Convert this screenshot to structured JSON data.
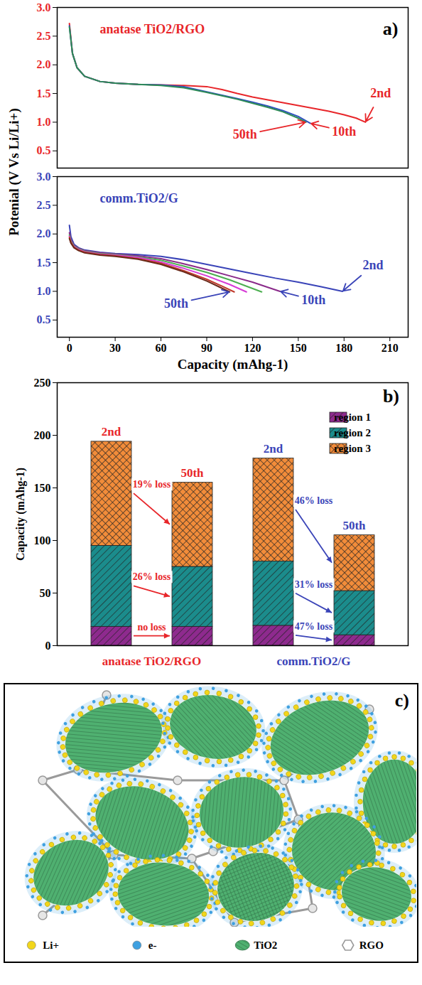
{
  "chart_data": [
    {
      "type": "line",
      "panel_label": "a)",
      "xlabel": "Capacity (mAhg-1)",
      "ylabel": "Potenial (V Vs Li/Li+)",
      "xlim": [
        -8,
        222
      ],
      "xticks": [
        0,
        30,
        60,
        90,
        120,
        150,
        180,
        210
      ],
      "ylim": [
        0.2,
        3.0
      ],
      "yticks": [
        0.5,
        {
          "value": 1,
          "label": "1.0"
        },
        1.5,
        {
          "value": 2,
          "label": "2.0"
        },
        2.5,
        {
          "value": 3,
          "label": "3.0"
        }
      ],
      "panels": [
        {
          "title": "anatase TiO2/RGO",
          "color": "#e8262a",
          "tick_labels": "y",
          "series": [
            {
              "name": "2nd",
              "color": "#e8262a",
              "x": [
                0,
                2,
                5,
                10,
                20,
                30,
                45,
                60,
                75,
                90,
                100,
                110,
                120,
                130,
                140,
                150,
                160,
                170,
                180,
                188,
                194
              ],
              "values": [
                2.72,
                2.2,
                1.95,
                1.8,
                1.71,
                1.68,
                1.66,
                1.65,
                1.64,
                1.62,
                1.57,
                1.5,
                1.44,
                1.39,
                1.34,
                1.29,
                1.24,
                1.19,
                1.13,
                1.07,
                1.0
              ]
            },
            {
              "name": "10th",
              "color": "#3050c0",
              "x": [
                0,
                2,
                5,
                10,
                20,
                30,
                45,
                60,
                75,
                90,
                100,
                110,
                120,
                130,
                140,
                150,
                158
              ],
              "values": [
                2.68,
                2.2,
                1.95,
                1.8,
                1.71,
                1.68,
                1.66,
                1.65,
                1.62,
                1.53,
                1.47,
                1.41,
                1.35,
                1.28,
                1.2,
                1.1,
                0.98
              ]
            },
            {
              "name": "50th",
              "color": "#2e8b57",
              "x": [
                0,
                2,
                5,
                10,
                20,
                30,
                45,
                60,
                75,
                90,
                100,
                110,
                120,
                130,
                140,
                150,
                155
              ],
              "values": [
                2.66,
                2.2,
                1.95,
                1.8,
                1.71,
                1.68,
                1.66,
                1.64,
                1.6,
                1.52,
                1.46,
                1.4,
                1.33,
                1.26,
                1.18,
                1.07,
                1.0
              ]
            }
          ]
        },
        {
          "title": "comm.TiO2/G",
          "color": "#3a44b8",
          "series": [
            {
              "name": "2nd",
              "color": "#3a44b8",
              "x": [
                0,
                1,
                3,
                6,
                10,
                20,
                30,
                45,
                60,
                75,
                90,
                105,
                120,
                135,
                150,
                165,
                179
              ],
              "values": [
                2.15,
                1.95,
                1.82,
                1.76,
                1.72,
                1.68,
                1.66,
                1.64,
                1.61,
                1.55,
                1.47,
                1.39,
                1.31,
                1.23,
                1.16,
                1.08,
                1.0
              ]
            },
            {
              "name": "10th",
              "color": "#8a2a8a",
              "x": [
                0,
                1,
                3,
                6,
                10,
                20,
                30,
                45,
                60,
                75,
                90,
                105,
                120,
                130,
                138
              ],
              "values": [
                2.02,
                1.9,
                1.8,
                1.75,
                1.71,
                1.67,
                1.65,
                1.62,
                1.57,
                1.48,
                1.38,
                1.27,
                1.16,
                1.07,
                1.0
              ]
            },
            {
              "color": "#4caf50",
              "x": [
                0,
                1,
                3,
                6,
                10,
                20,
                30,
                45,
                60,
                75,
                90,
                105,
                117,
                126
              ],
              "values": [
                1.98,
                1.88,
                1.79,
                1.74,
                1.7,
                1.66,
                1.64,
                1.6,
                1.54,
                1.44,
                1.33,
                1.2,
                1.08,
                0.99
              ]
            },
            {
              "color": "#d63bd6",
              "x": [
                0,
                1,
                3,
                6,
                10,
                20,
                30,
                45,
                60,
                75,
                90,
                105,
                116
              ],
              "values": [
                1.96,
                1.86,
                1.78,
                1.73,
                1.69,
                1.65,
                1.63,
                1.59,
                1.51,
                1.4,
                1.27,
                1.12,
                0.99
              ]
            },
            {
              "color": "#c0392b",
              "x": [
                0,
                1,
                3,
                6,
                10,
                20,
                30,
                45,
                60,
                75,
                90,
                100,
                108
              ],
              "values": [
                1.94,
                1.85,
                1.77,
                1.72,
                1.68,
                1.64,
                1.62,
                1.57,
                1.49,
                1.36,
                1.21,
                1.09,
                0.99
              ]
            },
            {
              "name": "50th",
              "color": "#6b2a1a",
              "x": [
                0,
                1,
                3,
                6,
                10,
                20,
                30,
                45,
                60,
                75,
                90,
                98,
                105
              ],
              "values": [
                1.92,
                1.84,
                1.76,
                1.71,
                1.67,
                1.63,
                1.61,
                1.56,
                1.47,
                1.34,
                1.18,
                1.08,
                0.99
              ]
            }
          ]
        }
      ]
    },
    {
      "type": "bar",
      "stacked": true,
      "panel_label": "b)",
      "ylabel": "Capacity (mAhg-1)",
      "ylim": [
        0,
        250
      ],
      "yticks": [
        0,
        50,
        100,
        150,
        200,
        250
      ],
      "categories": [
        "2nd",
        "50th",
        "2nd",
        "50th"
      ],
      "category_group": [
        0,
        0,
        1,
        1
      ],
      "groups": [
        {
          "name": "anatase TiO2/RGO",
          "color": "#e8262a"
        },
        {
          "name": "comm.TiO2/G",
          "color": "#3a44b8"
        }
      ],
      "legend": "top-right",
      "series": [
        {
          "name": "region 1",
          "color": "#8e2a8e",
          "values": [
            18,
            18,
            19,
            10
          ]
        },
        {
          "name": "region 2",
          "color": "#1b8c8c",
          "values": [
            77,
            57,
            61,
            42
          ]
        },
        {
          "name": "region 3",
          "color": "#f28c3a",
          "values": [
            99,
            80,
            98,
            53
          ]
        }
      ],
      "annotations": [
        {
          "text": "19% loss",
          "series": 2,
          "from": 0,
          "to": 1,
          "color": "#e8262a"
        },
        {
          "text": "26% loss",
          "series": 1,
          "from": 0,
          "to": 1,
          "color": "#e8262a"
        },
        {
          "text": "no loss",
          "series": 0,
          "from": 0,
          "to": 1,
          "color": "#e8262a"
        },
        {
          "text": "46% loss",
          "series": 2,
          "from": 2,
          "to": 3,
          "color": "#3a44b8"
        },
        {
          "text": "31% loss",
          "series": 1,
          "from": 2,
          "to": 3,
          "color": "#3a44b8"
        },
        {
          "text": "47% loss",
          "series": 0,
          "from": 2,
          "to": 3,
          "color": "#3a44b8"
        }
      ]
    }
  ],
  "diagram": {
    "panel_label": "c)",
    "legend": [
      {
        "label": "Li+",
        "color": "#f2d61b",
        "marker": "circle"
      },
      {
        "label": "e-",
        "color": "#3fa0e0",
        "marker": "circle"
      },
      {
        "label": "TiO2",
        "color": "#4fb070",
        "marker": "ellipse"
      },
      {
        "label": "RGO",
        "color": "#9a9a9a",
        "marker": "hexagon"
      }
    ]
  }
}
